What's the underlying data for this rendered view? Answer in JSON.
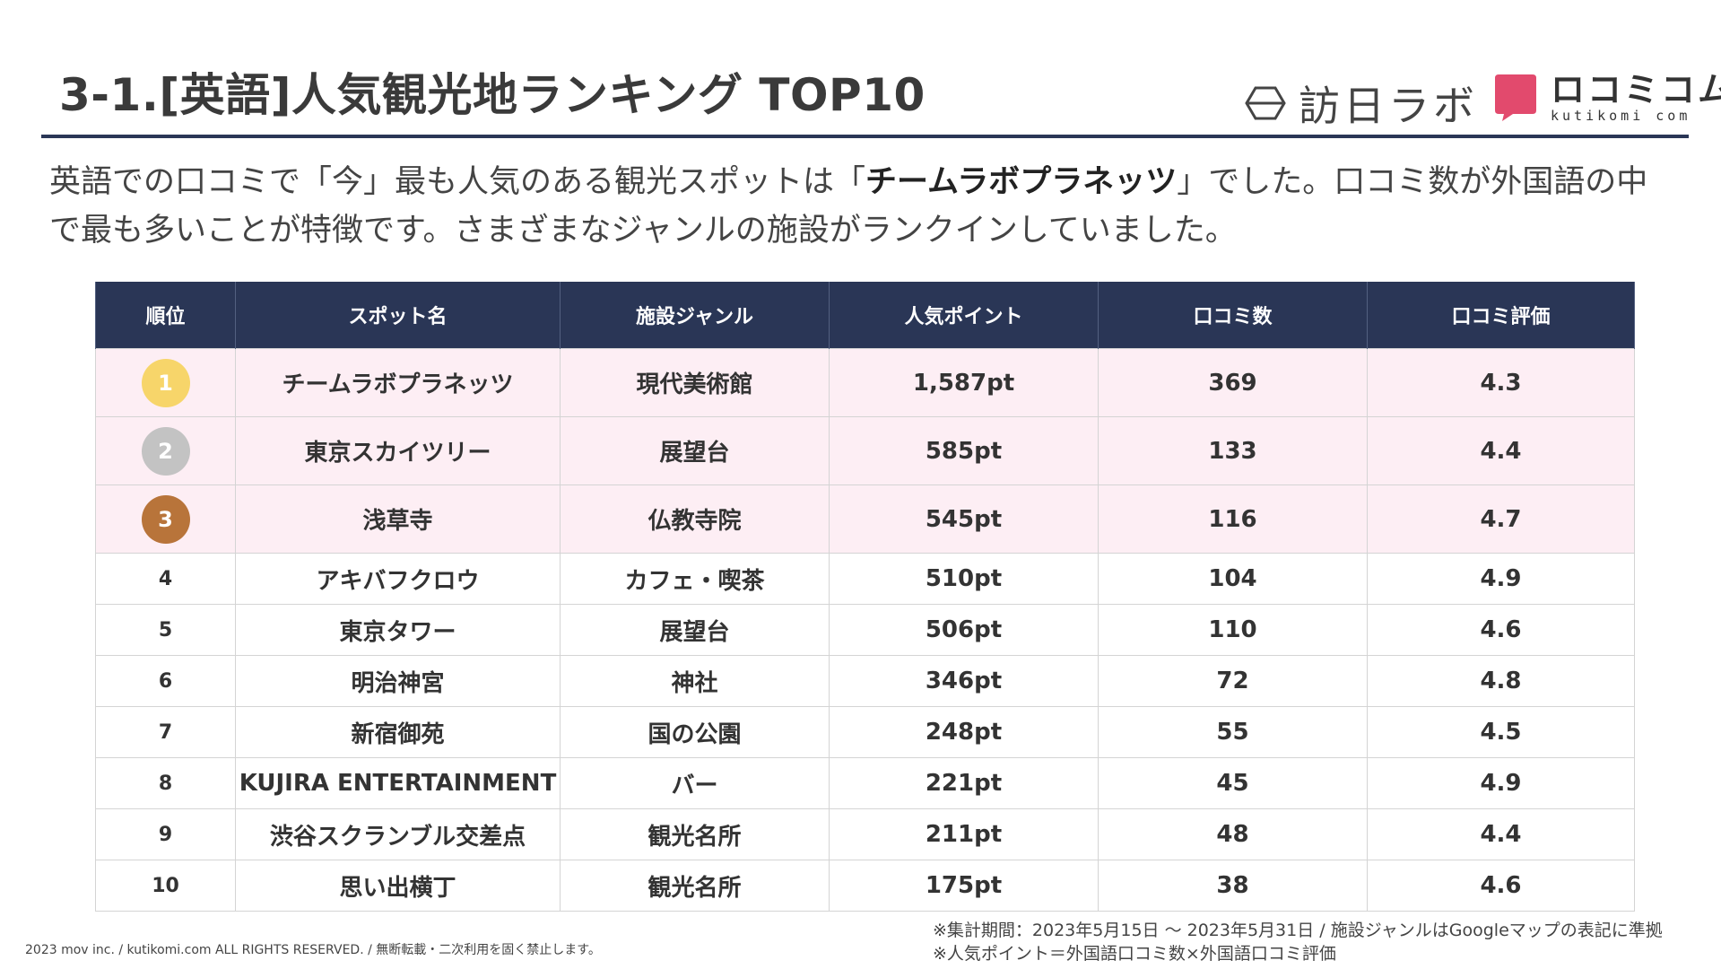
{
  "header": {
    "title": "3-1.[英語]人気観光地ランキング TOP10",
    "logo_houjin_text": "訪日ラボ",
    "logo_kutikomi_text": "ロコミコム",
    "logo_kutikomi_sub": "kutikomi com"
  },
  "lead": {
    "text_before": "英語での口コミで「今」最も人気のある観光スポットは「",
    "text_emphasis": "チームラボプラネッツ",
    "text_after": "」でした。口コミ数が外国語の中で最も多いことが特徴です。さまざまなジャンルの施設がランクインしていました。"
  },
  "table": {
    "columns": [
      "順位",
      "スポット名",
      "施設ジャンル",
      "人気ポイント",
      "口コミ数",
      "口コミ評価"
    ],
    "rows": [
      {
        "rank": "1",
        "spot": "チームラボプラネッツ",
        "genre": "現代美術館",
        "points": "1,587pt",
        "reviews": "369",
        "rating": "4.3"
      },
      {
        "rank": "2",
        "spot": "東京スカイツリー",
        "genre": "展望台",
        "points": "585pt",
        "reviews": "133",
        "rating": "4.4"
      },
      {
        "rank": "3",
        "spot": "浅草寺",
        "genre": "仏教寺院",
        "points": "545pt",
        "reviews": "116",
        "rating": "4.7"
      },
      {
        "rank": "4",
        "spot": "アキバフクロウ",
        "genre": "カフェ・喫茶",
        "points": "510pt",
        "reviews": "104",
        "rating": "4.9"
      },
      {
        "rank": "5",
        "spot": "東京タワー",
        "genre": "展望台",
        "points": "506pt",
        "reviews": "110",
        "rating": "4.6"
      },
      {
        "rank": "6",
        "spot": "明治神宮",
        "genre": "神社",
        "points": "346pt",
        "reviews": "72",
        "rating": "4.8"
      },
      {
        "rank": "7",
        "spot": "新宿御苑",
        "genre": "国の公園",
        "points": "248pt",
        "reviews": "55",
        "rating": "4.5"
      },
      {
        "rank": "8",
        "spot": "KUJIRA ENTERTAINMENT",
        "genre": "バー",
        "points": "221pt",
        "reviews": "45",
        "rating": "4.9"
      },
      {
        "rank": "9",
        "spot": "渋谷スクランブル交差点",
        "genre": "観光名所",
        "points": "211pt",
        "reviews": "48",
        "rating": "4.4"
      },
      {
        "rank": "10",
        "spot": "思い出横丁",
        "genre": "観光名所",
        "points": "175pt",
        "reviews": "38",
        "rating": "4.6"
      }
    ]
  },
  "colors": {
    "header_navy": "#2a3656",
    "highlight_row": "#fdeef4",
    "gold": "#f7d56a",
    "silver": "#c3c3c3",
    "bronze": "#b8743a",
    "brand_pink": "#e24a6d"
  },
  "footer": {
    "copyright": "2023 mov inc. / kutikomi.com ALL RIGHTS RESERVED. / 無断転載・二次利用を固く禁止します。",
    "note1": "※集計期間：2023年5月15日 〜 2023年5月31日 / 施設ジャンルはGoogleマップの表記に準拠",
    "note2": "※人気ポイント＝外国語口コミ数×外国語口コミ評価"
  }
}
